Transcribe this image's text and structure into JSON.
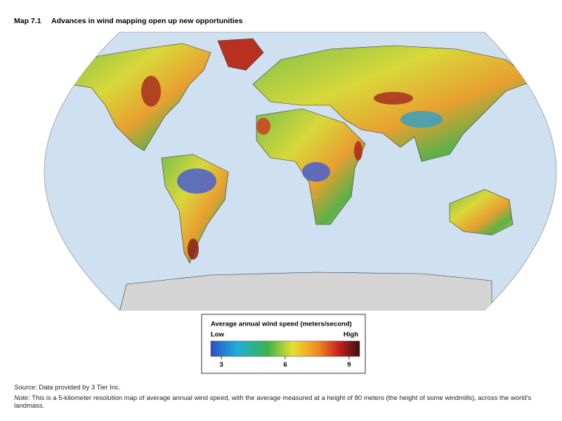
{
  "header": {
    "label": "Map 7.1",
    "title": "Advances in wind mapping open up new opportunities"
  },
  "legend": {
    "title": "Average annual wind speed (meters/second)",
    "low": "Low",
    "high": "High",
    "lim": [
      2.5,
      9.5
    ],
    "ticks": [
      3,
      6,
      9
    ]
  },
  "footer": {
    "source_label": "Source",
    "source_text": ": Data provided by 3 Tier Inc.",
    "note_label": "Note",
    "note_text": ": This is a 5-kilometer resolution map of average annual wind speed, with the average measured at a height of 80 meters (the height of some windmills), across the world's landmass."
  }
}
